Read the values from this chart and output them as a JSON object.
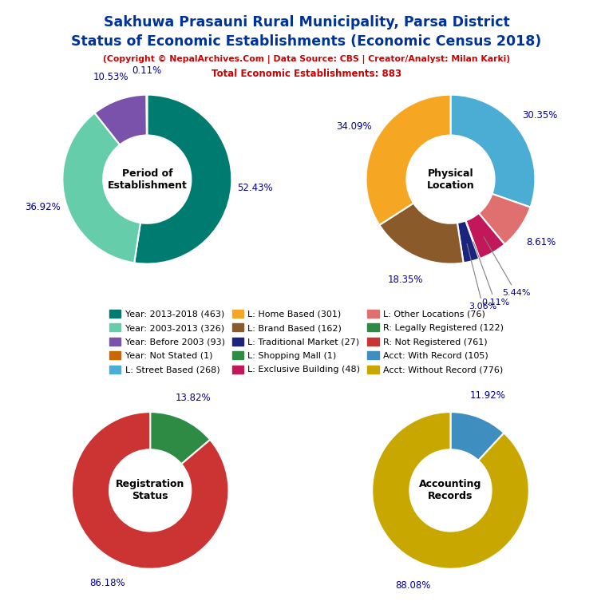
{
  "title_line1": "Sakhuwa Prasauni Rural Municipality, Parsa District",
  "title_line2": "Status of Economic Establishments (Economic Census 2018)",
  "subtitle": "(Copyright © NepalArchives.Com | Data Source: CBS | Creator/Analyst: Milan Karki)",
  "total": "Total Economic Establishments: 883",
  "pie1_label": "Period of\nEstablishment",
  "pie1_values": [
    463,
    326,
    93,
    1
  ],
  "pie1_colors": [
    "#007B70",
    "#66CDAA",
    "#7B52AB",
    "#CC6600"
  ],
  "pie1_pcts": [
    "52.43%",
    "36.92%",
    "10.53%",
    "0.11%"
  ],
  "pie1_startangle": 90,
  "pie2_label": "Physical\nLocation",
  "pie2_values": [
    268,
    76,
    48,
    1,
    27,
    162,
    301
  ],
  "pie2_colors": [
    "#4BADD4",
    "#E07070",
    "#C2185B",
    "#2E7D32",
    "#1A237E",
    "#8B5A2B",
    "#F5A623"
  ],
  "pie2_pcts": [
    "30.35%",
    "8.61%",
    "5.44%",
    "0.11%",
    "3.06%",
    "18.35%",
    "34.09%"
  ],
  "pie2_startangle": 90,
  "pie3_label": "Registration\nStatus",
  "pie3_values": [
    122,
    761
  ],
  "pie3_colors": [
    "#2E8B44",
    "#CC3333"
  ],
  "pie3_pcts": [
    "13.82%",
    "86.18%"
  ],
  "pie3_startangle": 90,
  "pie4_label": "Accounting\nRecords",
  "pie4_values": [
    105,
    776
  ],
  "pie4_colors": [
    "#3E8FC0",
    "#C8A800"
  ],
  "pie4_pcts": [
    "11.92%",
    "88.08%"
  ],
  "pie4_startangle": 90,
  "legend_items": [
    {
      "label": "Year: 2013-2018 (463)",
      "color": "#007B70"
    },
    {
      "label": "Year: 2003-2013 (326)",
      "color": "#66CDAA"
    },
    {
      "label": "Year: Before 2003 (93)",
      "color": "#7B52AB"
    },
    {
      "label": "Year: Not Stated (1)",
      "color": "#CC6600"
    },
    {
      "label": "L: Street Based (268)",
      "color": "#4BADD4"
    },
    {
      "label": "L: Home Based (301)",
      "color": "#F5A623"
    },
    {
      "label": "L: Brand Based (162)",
      "color": "#8B5A2B"
    },
    {
      "label": "L: Traditional Market (27)",
      "color": "#1A237E"
    },
    {
      "label": "L: Shopping Mall (1)",
      "color": "#2E8B44"
    },
    {
      "label": "L: Exclusive Building (48)",
      "color": "#C2185B"
    },
    {
      "label": "L: Other Locations (76)",
      "color": "#E07070"
    },
    {
      "label": "R: Legally Registered (122)",
      "color": "#2E8B44"
    },
    {
      "label": "R: Not Registered (761)",
      "color": "#CC3333"
    },
    {
      "label": "Acct: With Record (105)",
      "color": "#3E8FC0"
    },
    {
      "label": "Acct: Without Record (776)",
      "color": "#C8A800"
    }
  ],
  "title_color": "#003399",
  "subtitle_color": "#CC0000",
  "pct_color": "#000099",
  "bg_color": "#FFFFFF"
}
